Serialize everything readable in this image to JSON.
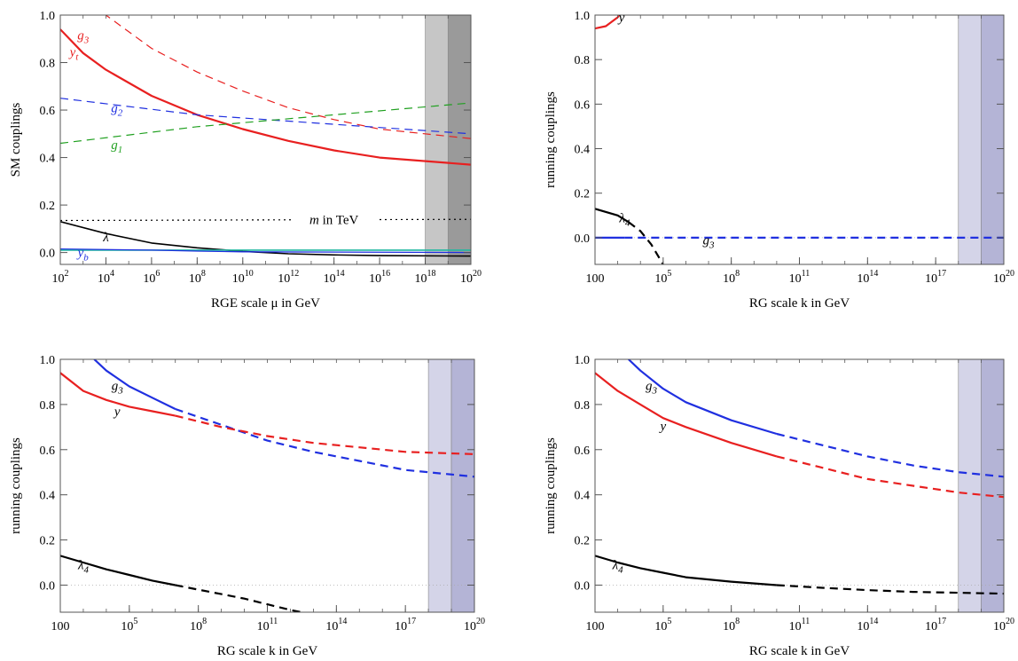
{
  "chart_data": [
    {
      "type": "line",
      "xlabel": "RGE scale μ in GeV",
      "ylabel": "SM couplings",
      "x_scale": "log10",
      "xlim": [
        100,
        1e+20
      ],
      "ylim": [
        -0.05,
        1.0
      ],
      "x_ticks": [
        100,
        10000,
        1000000,
        100000000,
        10000000000,
        1000000000000,
        100000000000000,
        10000000000000000,
        1000000000000000000,
        1e+20
      ],
      "x_tick_labels": [
        {
          "base": "10",
          "exp": "2"
        },
        {
          "base": "10",
          "exp": "4"
        },
        {
          "base": "10",
          "exp": "6"
        },
        {
          "base": "10",
          "exp": "8"
        },
        {
          "base": "10",
          "exp": "10"
        },
        {
          "base": "10",
          "exp": "12"
        },
        {
          "base": "10",
          "exp": "14"
        },
        {
          "base": "10",
          "exp": "16"
        },
        {
          "base": "10",
          "exp": "18"
        },
        {
          "base": "10",
          "exp": "20"
        }
      ],
      "y_ticks": [
        "0.0",
        "0.2",
        "0.4",
        "0.6",
        "0.8",
        "1.0"
      ],
      "bands": [
        {
          "from": 1e+18,
          "to": 1e+19,
          "color": "#c6c6c6"
        },
        {
          "from": 1e+19,
          "to": 1e+20,
          "color": "#9a9a9a"
        }
      ],
      "series": [
        {
          "name": "g₃",
          "color": "#e82020",
          "dash": "dashed",
          "width": 1.2,
          "x": [
            100,
            1000,
            10000,
            1000000,
            100000000,
            10000000000,
            1000000000000,
            100000000000000,
            10000000000000000,
            1e+20
          ],
          "y": [
            1.22,
            1.1,
            1.0,
            0.86,
            0.76,
            0.68,
            0.61,
            0.56,
            0.52,
            0.48
          ]
        },
        {
          "name": "yₜ",
          "color": "#e82020",
          "dash": "solid",
          "width": 2.2,
          "x": [
            100,
            1000,
            10000,
            1000000,
            100000000,
            10000000000,
            1000000000000,
            100000000000000,
            10000000000000000,
            1e+20
          ],
          "y": [
            0.94,
            0.84,
            0.77,
            0.66,
            0.58,
            0.52,
            0.47,
            0.43,
            0.4,
            0.37
          ]
        },
        {
          "name": "g₂",
          "color": "#2030e0",
          "dash": "dashed",
          "width": 1.2,
          "x": [
            100,
            100000000,
            1e+20
          ],
          "y": [
            0.65,
            0.58,
            0.5
          ]
        },
        {
          "name": "g₁",
          "color": "#20a020",
          "dash": "dashed",
          "width": 1.2,
          "x": [
            100,
            100000000,
            1e+20
          ],
          "y": [
            0.46,
            0.53,
            0.63
          ]
        },
        {
          "name": "m in TeV",
          "color": "#000000",
          "dash": "dotted",
          "width": 1.2,
          "x": [
            100,
            1e+20
          ],
          "y": [
            0.135,
            0.14
          ]
        },
        {
          "name": "λ",
          "color": "#000000",
          "dash": "solid",
          "width": 1.6,
          "x": [
            100,
            10000,
            1000000,
            100000000,
            10000000000,
            1000000000000,
            100000000000000,
            10000000000000000,
            1e+20
          ],
          "y": [
            0.13,
            0.08,
            0.04,
            0.02,
            0.005,
            -0.005,
            -0.01,
            -0.013,
            -0.015
          ]
        },
        {
          "name": "",
          "color": "#20b8a0",
          "dash": "solid",
          "width": 1.6,
          "x": [
            100,
            100000000,
            1e+20
          ],
          "y": [
            0.01,
            0.01,
            0.01
          ]
        },
        {
          "name": "y_b",
          "color": "#2030e0",
          "dash": "solid",
          "width": 1.3,
          "x": [
            100,
            1000000,
            100000000,
            10000000000,
            1e+20
          ],
          "y": [
            0.015,
            0.01,
            0.006,
            0.003,
            0.0
          ]
        }
      ],
      "labels": [
        {
          "series": "g₃",
          "text": "g",
          "sub": "3",
          "at_x": 1000,
          "at_y": 0.915,
          "color": "#e82020"
        },
        {
          "series": "yₜ",
          "text": "y",
          "sub": "t",
          "at_x": 400,
          "at_y": 0.845,
          "color": "#e82020"
        },
        {
          "series": "g₂",
          "text": "g",
          "sub": "2",
          "at_x": 30000,
          "at_y": 0.61,
          "color": "#2030e0"
        },
        {
          "series": "g₁",
          "text": "g",
          "sub": "1",
          "at_x": 30000,
          "at_y": 0.455,
          "color": "#20a020"
        },
        {
          "series": "m in TeV",
          "text": "m in TeV",
          "italic_first": "m",
          "at_x": 100000000000000,
          "at_y": 0.138,
          "color": "#000000"
        },
        {
          "series": "λ",
          "text": "λ",
          "at_x": 10000,
          "at_y": 0.065,
          "color": "#000000"
        },
        {
          "series": "y_b",
          "text": "y",
          "sub": "b",
          "at_x": 1000,
          "at_y": 0.0,
          "color": "#2030e0"
        }
      ]
    },
    {
      "type": "line",
      "xlabel": "RG scale k in GeV",
      "ylabel": "running couplings",
      "x_scale": "log10",
      "xlim": [
        100,
        1e+20
      ],
      "ylim": [
        -0.12,
        1.0
      ],
      "x_ticks": [
        100,
        100000,
        100000000,
        100000000000,
        100000000000000,
        100000000000000000,
        1e+20
      ],
      "x_tick_labels": [
        {
          "base": "100",
          "exp": ""
        },
        {
          "base": "10",
          "exp": "5"
        },
        {
          "base": "10",
          "exp": "8"
        },
        {
          "base": "10",
          "exp": "11"
        },
        {
          "base": "10",
          "exp": "14"
        },
        {
          "base": "10",
          "exp": "17"
        },
        {
          "base": "10",
          "exp": "20"
        }
      ],
      "y_ticks": [
        "0.0",
        "0.2",
        "0.4",
        "0.6",
        "0.8",
        "1.0"
      ],
      "bands": [
        {
          "from": 1e+18,
          "to": 1e+19,
          "color": "#d4d4e8"
        },
        {
          "from": 1e+19,
          "to": 1e+20,
          "color": "#b4b4d6"
        }
      ],
      "series": [
        {
          "name": "y",
          "color": "#e82020",
          "dash": "solid",
          "width": 2.2,
          "x": [
            100,
            300,
            1000,
            2000
          ],
          "y": [
            0.94,
            0.95,
            0.99,
            1.03
          ]
        },
        {
          "name": "λ₄ (solid)",
          "color": "#000000",
          "dash": "solid",
          "width": 2.2,
          "x": [
            100,
            1000,
            3000
          ],
          "y": [
            0.13,
            0.1,
            0.07
          ]
        },
        {
          "name": "λ₄ (dashed)",
          "color": "#000000",
          "dash": "dashed",
          "width": 2.2,
          "x": [
            3000,
            10000,
            30000,
            100000
          ],
          "y": [
            0.07,
            0.03,
            -0.03,
            -0.12
          ]
        },
        {
          "name": "g₃ (solid)",
          "color": "#2030e0",
          "dash": "solid",
          "width": 2.2,
          "x": [
            100,
            2000
          ],
          "y": [
            0.0,
            0.0
          ]
        },
        {
          "name": "g₃ (dashed)",
          "color": "#2030e0",
          "dash": "dashed",
          "width": 2.2,
          "x": [
            2000,
            1e+20
          ],
          "y": [
            0.0,
            0.0
          ]
        }
      ],
      "labels": [
        {
          "series": "y",
          "text": "y",
          "at_x": 1500,
          "at_y": 0.99,
          "color": "#000000"
        },
        {
          "series": "λ₄",
          "text": "λ",
          "sub": "4",
          "at_x": 2000,
          "at_y": 0.09,
          "color": "#000000"
        },
        {
          "series": "g₃",
          "text": "g",
          "sub": "3",
          "at_x": 10000000,
          "at_y": -0.01,
          "color": "#000000"
        }
      ]
    },
    {
      "type": "line",
      "xlabel": "RG scale k in GeV",
      "ylabel": "running couplings",
      "x_scale": "log10",
      "xlim": [
        100,
        1e+20
      ],
      "ylim": [
        -0.12,
        1.0
      ],
      "x_ticks": [
        100,
        100000,
        100000000,
        100000000000,
        100000000000000,
        100000000000000000,
        1e+20
      ],
      "x_tick_labels": [
        {
          "base": "100",
          "exp": ""
        },
        {
          "base": "10",
          "exp": "5"
        },
        {
          "base": "10",
          "exp": "8"
        },
        {
          "base": "10",
          "exp": "11"
        },
        {
          "base": "10",
          "exp": "14"
        },
        {
          "base": "10",
          "exp": "17"
        },
        {
          "base": "10",
          "exp": "20"
        }
      ],
      "y_ticks": [
        "0.0",
        "0.2",
        "0.4",
        "0.6",
        "0.8",
        "1.0"
      ],
      "bands": [
        {
          "from": 1e+18,
          "to": 1e+19,
          "color": "#d4d4e8"
        },
        {
          "from": 1e+19,
          "to": 1e+20,
          "color": "#b4b4d6"
        }
      ],
      "series": [
        {
          "name": "g₃ (solid)",
          "color": "#2030e0",
          "dash": "solid",
          "width": 2.2,
          "x": [
            3000,
            10000,
            100000,
            1000000,
            10000000
          ],
          "y": [
            1.0,
            0.95,
            0.88,
            0.83,
            0.78
          ]
        },
        {
          "name": "g₃ (dashed)",
          "color": "#2030e0",
          "dash": "dashed",
          "width": 2.2,
          "x": [
            10000000,
            1000000000,
            100000000000,
            10000000000000,
            1000000000000000,
            100000000000000000,
            1e+20
          ],
          "y": [
            0.78,
            0.71,
            0.64,
            0.59,
            0.55,
            0.51,
            0.48
          ]
        },
        {
          "name": "y (solid)",
          "color": "#e82020",
          "dash": "solid",
          "width": 2.2,
          "x": [
            100,
            1000,
            10000,
            100000,
            1000000,
            10000000
          ],
          "y": [
            0.94,
            0.86,
            0.82,
            0.79,
            0.77,
            0.75
          ]
        },
        {
          "name": "y (dashed)",
          "color": "#e82020",
          "dash": "dashed",
          "width": 2.2,
          "x": [
            10000000,
            1000000000,
            100000000000,
            10000000000000,
            1000000000000000,
            100000000000000000,
            1e+20
          ],
          "y": [
            0.75,
            0.7,
            0.66,
            0.63,
            0.61,
            0.59,
            0.58
          ]
        },
        {
          "name": "λ₄ (solid)",
          "color": "#000000",
          "dash": "solid",
          "width": 2.2,
          "x": [
            100,
            1000,
            10000,
            100000,
            1000000,
            10000000
          ],
          "y": [
            0.13,
            0.1,
            0.07,
            0.045,
            0.02,
            0.0
          ]
        },
        {
          "name": "λ₄ (dashed)",
          "color": "#000000",
          "dash": "dashed",
          "width": 2.2,
          "x": [
            10000000,
            100000000,
            1000000000,
            10000000000,
            100000000000,
            1000000000000,
            3000000000000
          ],
          "y": [
            0.0,
            -0.02,
            -0.04,
            -0.06,
            -0.085,
            -0.11,
            -0.12
          ]
        }
      ],
      "labels": [
        {
          "series": "g₃",
          "text": "g",
          "sub": "3",
          "at_x": 30000,
          "at_y": 0.885,
          "color": "#000000"
        },
        {
          "series": "y",
          "text": "y",
          "at_x": 30000,
          "at_y": 0.77,
          "color": "#000000"
        },
        {
          "series": "λ₄",
          "text": "λ",
          "sub": "4",
          "at_x": 1000,
          "at_y": 0.09,
          "color": "#000000"
        }
      ]
    },
    {
      "type": "line",
      "xlabel": "RG scale k in GeV",
      "ylabel": "running couplings",
      "x_scale": "log10",
      "xlim": [
        100,
        1e+20
      ],
      "ylim": [
        -0.12,
        1.0
      ],
      "x_ticks": [
        100,
        100000,
        100000000,
        100000000000,
        100000000000000,
        100000000000000000,
        1e+20
      ],
      "x_tick_labels": [
        {
          "base": "100",
          "exp": ""
        },
        {
          "base": "10",
          "exp": "5"
        },
        {
          "base": "10",
          "exp": "8"
        },
        {
          "base": "10",
          "exp": "11"
        },
        {
          "base": "10",
          "exp": "14"
        },
        {
          "base": "10",
          "exp": "17"
        },
        {
          "base": "10",
          "exp": "20"
        }
      ],
      "y_ticks": [
        "0.0",
        "0.2",
        "0.4",
        "0.6",
        "0.8",
        "1.0"
      ],
      "bands": [
        {
          "from": 1e+18,
          "to": 1e+19,
          "color": "#d4d4e8"
        },
        {
          "from": 1e+19,
          "to": 1e+20,
          "color": "#b4b4d6"
        }
      ],
      "series": [
        {
          "name": "g₃ (solid)",
          "color": "#2030e0",
          "dash": "solid",
          "width": 2.2,
          "x": [
            3000,
            10000,
            100000,
            1000000,
            100000000,
            10000000000
          ],
          "y": [
            1.0,
            0.95,
            0.87,
            0.81,
            0.73,
            0.67
          ]
        },
        {
          "name": "g₃ (dashed)",
          "color": "#2030e0",
          "dash": "dashed",
          "width": 2.2,
          "x": [
            10000000000,
            1000000000000,
            100000000000000,
            10000000000000000,
            1000000000000000000,
            1e+20
          ],
          "y": [
            0.67,
            0.62,
            0.57,
            0.53,
            0.5,
            0.48
          ]
        },
        {
          "name": "y (solid)",
          "color": "#e82020",
          "dash": "solid",
          "width": 2.2,
          "x": [
            100,
            1000,
            10000,
            100000,
            1000000,
            100000000,
            10000000000
          ],
          "y": [
            0.94,
            0.86,
            0.8,
            0.74,
            0.7,
            0.63,
            0.57
          ]
        },
        {
          "name": "y (dashed)",
          "color": "#e82020",
          "dash": "dashed",
          "width": 2.2,
          "x": [
            10000000000,
            1000000000000,
            100000000000000,
            10000000000000000,
            1000000000000000000,
            1e+20
          ],
          "y": [
            0.57,
            0.52,
            0.47,
            0.44,
            0.41,
            0.39
          ]
        },
        {
          "name": "λ₄ (solid)",
          "color": "#000000",
          "dash": "solid",
          "width": 2.2,
          "x": [
            100,
            1000,
            10000,
            100000,
            1000000,
            100000000,
            10000000000
          ],
          "y": [
            0.13,
            0.1,
            0.075,
            0.055,
            0.035,
            0.015,
            0.0
          ]
        },
        {
          "name": "λ₄ (dashed)",
          "color": "#000000",
          "dash": "dashed",
          "width": 2.2,
          "x": [
            10000000000,
            1000000000000,
            100000000000000,
            10000000000000000,
            1e+20
          ],
          "y": [
            0.0,
            -0.012,
            -0.022,
            -0.03,
            -0.038
          ]
        }
      ],
      "labels": [
        {
          "series": "g₃",
          "text": "g",
          "sub": "3",
          "at_x": 30000,
          "at_y": 0.885,
          "color": "#000000"
        },
        {
          "series": "y",
          "text": "y",
          "at_x": 100000,
          "at_y": 0.705,
          "color": "#000000"
        },
        {
          "series": "λ₄",
          "text": "λ",
          "sub": "4",
          "at_x": 1000,
          "at_y": 0.09,
          "color": "#000000"
        }
      ]
    }
  ]
}
